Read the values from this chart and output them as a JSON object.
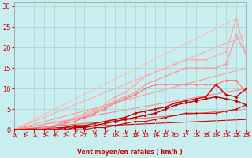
{
  "xlabel": "Vent moyen/en rafales ( km/h )",
  "xlim": [
    0,
    23
  ],
  "ylim": [
    0,
    31
  ],
  "yticks": [
    0,
    5,
    10,
    15,
    20,
    25,
    30
  ],
  "xticks": [
    0,
    1,
    2,
    3,
    4,
    5,
    6,
    7,
    8,
    9,
    10,
    11,
    12,
    13,
    14,
    15,
    16,
    17,
    18,
    19,
    20,
    21,
    22,
    23
  ],
  "bg_color": "#c8eef0",
  "grid_color": "#b0cccc",
  "lines": [
    {
      "x": [
        0,
        22
      ],
      "y": [
        0,
        27
      ],
      "color": "#ffbbbb",
      "lw": 0.8,
      "marker": null,
      "ms": 0,
      "zorder": 1
    },
    {
      "x": [
        0,
        23
      ],
      "y": [
        0,
        23
      ],
      "color": "#ffaaaa",
      "lw": 0.8,
      "marker": null,
      "ms": 0,
      "zorder": 1
    },
    {
      "x": [
        0,
        23
      ],
      "y": [
        0,
        15
      ],
      "color": "#ff9999",
      "lw": 0.8,
      "marker": null,
      "ms": 0,
      "zorder": 1
    },
    {
      "x": [
        0,
        23
      ],
      "y": [
        0,
        10
      ],
      "color": "#ff8888",
      "lw": 0.8,
      "marker": null,
      "ms": 0,
      "zorder": 1
    },
    {
      "x": [
        0,
        23
      ],
      "y": [
        0,
        5
      ],
      "color": "#ee6666",
      "lw": 0.8,
      "marker": null,
      "ms": 0,
      "zorder": 1
    },
    {
      "x": [
        0,
        23
      ],
      "y": [
        0,
        2.5
      ],
      "color": "#cc0000",
      "lw": 0.8,
      "marker": null,
      "ms": 0,
      "zorder": 1
    },
    {
      "x": [
        0,
        1,
        2,
        3,
        4,
        5,
        6,
        7,
        8,
        9,
        10,
        11,
        12,
        13,
        14,
        15,
        16,
        17,
        18,
        19,
        20,
        21,
        22,
        23
      ],
      "y": [
        0,
        0,
        0,
        0.5,
        1,
        2,
        3,
        4,
        5,
        6,
        8,
        9,
        11,
        13,
        14,
        15,
        16,
        17,
        17,
        17,
        18,
        19,
        27,
        18
      ],
      "color": "#ffaaaa",
      "lw": 0.9,
      "marker": "o",
      "ms": 2.0,
      "zorder": 3
    },
    {
      "x": [
        0,
        1,
        2,
        3,
        4,
        5,
        6,
        7,
        8,
        9,
        10,
        11,
        12,
        13,
        14,
        15,
        16,
        17,
        18,
        19,
        20,
        21,
        22,
        23
      ],
      "y": [
        0,
        0,
        0,
        0.5,
        1,
        2,
        2.5,
        3.5,
        4.5,
        5.5,
        7,
        8,
        9,
        11,
        12,
        13,
        14,
        15,
        15,
        15,
        15,
        16,
        23,
        18
      ],
      "color": "#ff9999",
      "lw": 0.9,
      "marker": "o",
      "ms": 2.0,
      "zorder": 3
    },
    {
      "x": [
        0,
        1,
        2,
        3,
        4,
        5,
        6,
        7,
        8,
        9,
        10,
        11,
        12,
        13,
        14,
        15,
        16,
        17,
        18,
        19,
        20,
        21,
        22,
        23
      ],
      "y": [
        0,
        0,
        0,
        0.3,
        0.8,
        1.5,
        2,
        3,
        4,
        5,
        6.5,
        7.5,
        8.5,
        10,
        11,
        11,
        11,
        11,
        11,
        11,
        11,
        12,
        12,
        9
      ],
      "color": "#ff7777",
      "lw": 0.9,
      "marker": "o",
      "ms": 2.0,
      "zorder": 3
    },
    {
      "x": [
        0,
        1,
        2,
        3,
        4,
        5,
        6,
        7,
        8,
        9,
        10,
        11,
        12,
        13,
        14,
        15,
        16,
        17,
        18,
        19,
        20,
        21,
        22,
        23
      ],
      "y": [
        0,
        0,
        0,
        0,
        0,
        0.5,
        1,
        1,
        1.5,
        2,
        2.5,
        3,
        4,
        4.5,
        5,
        5.5,
        6.5,
        7,
        7.5,
        8,
        11,
        8.5,
        8,
        10
      ],
      "color": "#cc0000",
      "lw": 1.0,
      "marker": "D",
      "ms": 2.0,
      "zorder": 4
    },
    {
      "x": [
        0,
        1,
        2,
        3,
        4,
        5,
        6,
        7,
        8,
        9,
        10,
        11,
        12,
        13,
        14,
        15,
        16,
        17,
        18,
        19,
        20,
        21,
        22,
        23
      ],
      "y": [
        0,
        0,
        0,
        0,
        0,
        0,
        0.5,
        0.5,
        1,
        1.5,
        2,
        2.5,
        3,
        3.5,
        4,
        5,
        6,
        6.5,
        7,
        7.5,
        8,
        7.5,
        7,
        6
      ],
      "color": "#bb0000",
      "lw": 1.0,
      "marker": "D",
      "ms": 2.0,
      "zorder": 4
    },
    {
      "x": [
        0,
        1,
        2,
        3,
        4,
        5,
        6,
        7,
        8,
        9,
        10,
        11,
        12,
        13,
        14,
        15,
        16,
        17,
        18,
        19,
        20,
        21,
        22,
        23
      ],
      "y": [
        0,
        0,
        0,
        0,
        0,
        0,
        0,
        0,
        0.5,
        0.5,
        1,
        1.5,
        2,
        2,
        2.5,
        3,
        3.5,
        4,
        4,
        4,
        4,
        4.5,
        5,
        6
      ],
      "color": "#cc0000",
      "lw": 0.8,
      "marker": "D",
      "ms": 1.5,
      "zorder": 4
    }
  ],
  "wind_dirs": [
    225,
    270,
    225,
    270,
    270,
    270,
    315,
    90,
    0,
    315,
    270,
    315,
    270,
    45,
    270,
    315,
    90,
    315,
    270,
    270,
    270,
    270,
    270,
    270
  ]
}
